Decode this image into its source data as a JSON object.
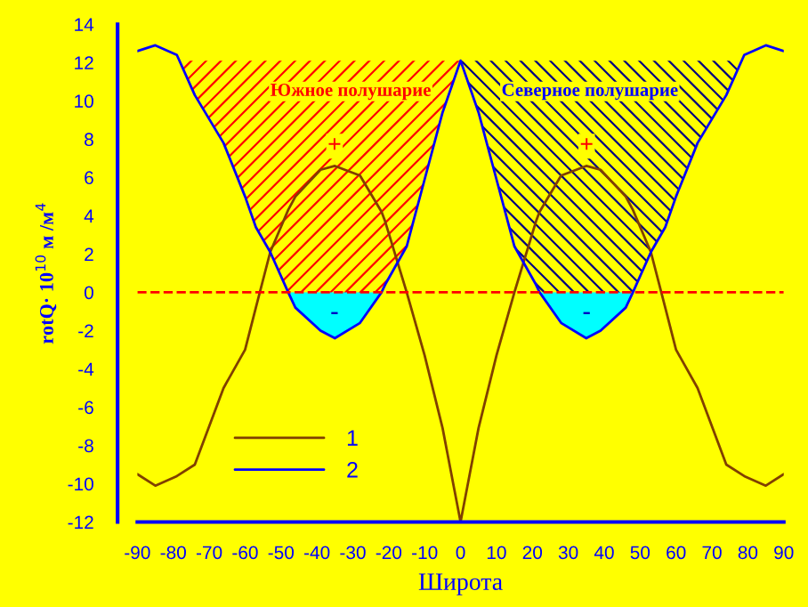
{
  "chart_data": {
    "type": "line",
    "xlabel": "Широта",
    "ylabel": "rotQ· 10$^{10}$ м /м$^{4}$",
    "x": [
      -90,
      -85,
      -79,
      -74,
      -66,
      -60,
      -57,
      -53,
      -48,
      -46,
      -39,
      -35,
      -28,
      -22,
      -21,
      -15,
      -10,
      -5,
      0,
      5,
      10,
      15,
      21,
      22,
      28,
      35,
      39,
      46,
      48,
      53,
      57,
      60,
      66,
      74,
      79,
      85,
      90
    ],
    "series": [
      {
        "name": "1",
        "color": "#804000",
        "values": [
          -9.5,
          -10.1,
          -9.6,
          -9.0,
          -5.0,
          -3.0,
          -0.8,
          2.1,
          4.3,
          5.0,
          6.4,
          6.6,
          6.1,
          4.2,
          3.7,
          0,
          -3.3,
          -7.1,
          -12,
          -7.1,
          -3.3,
          0,
          3.7,
          4.2,
          6.1,
          6.6,
          6.4,
          5.0,
          4.3,
          2.1,
          -0.8,
          -3.0,
          -5.0,
          -9.0,
          -9.6,
          -10.1,
          -9.5
        ]
      },
      {
        "name": "2",
        "color": "#0000ff",
        "values": [
          12.6,
          12.9,
          12.4,
          10.3,
          7.8,
          5.0,
          3.4,
          2.1,
          0,
          -0.8,
          -2.0,
          -2.4,
          -1.6,
          0,
          0.4,
          2.4,
          5.9,
          9.4,
          12.1,
          9.4,
          5.9,
          2.4,
          0.4,
          0,
          -1.6,
          -2.4,
          -2.0,
          -0.8,
          0,
          2.1,
          3.4,
          5.0,
          7.8,
          10.3,
          12.4,
          12.9,
          12.6
        ]
      }
    ],
    "xlim": [
      -90,
      90
    ],
    "ylim": [
      -12,
      14
    ],
    "xticks": [
      -90,
      -80,
      -70,
      -60,
      -50,
      -40,
      -30,
      -20,
      -10,
      0,
      10,
      20,
      30,
      40,
      50,
      60,
      70,
      80,
      90
    ],
    "yticks": [
      -12,
      -10,
      -8,
      -6,
      -4,
      -2,
      0,
      2,
      4,
      6,
      8,
      10,
      12,
      14
    ],
    "ref_lines": [
      {
        "axis": "y",
        "value": 0,
        "color": "#ff0000",
        "line_style": "dashed"
      }
    ],
    "annotations": [
      "Южное полушарие",
      "Северное полушарие",
      "+",
      "+",
      "-",
      "-"
    ],
    "legend": "bottom left",
    "grid": false,
    "marker": "none",
    "line_style": "solid"
  }
}
